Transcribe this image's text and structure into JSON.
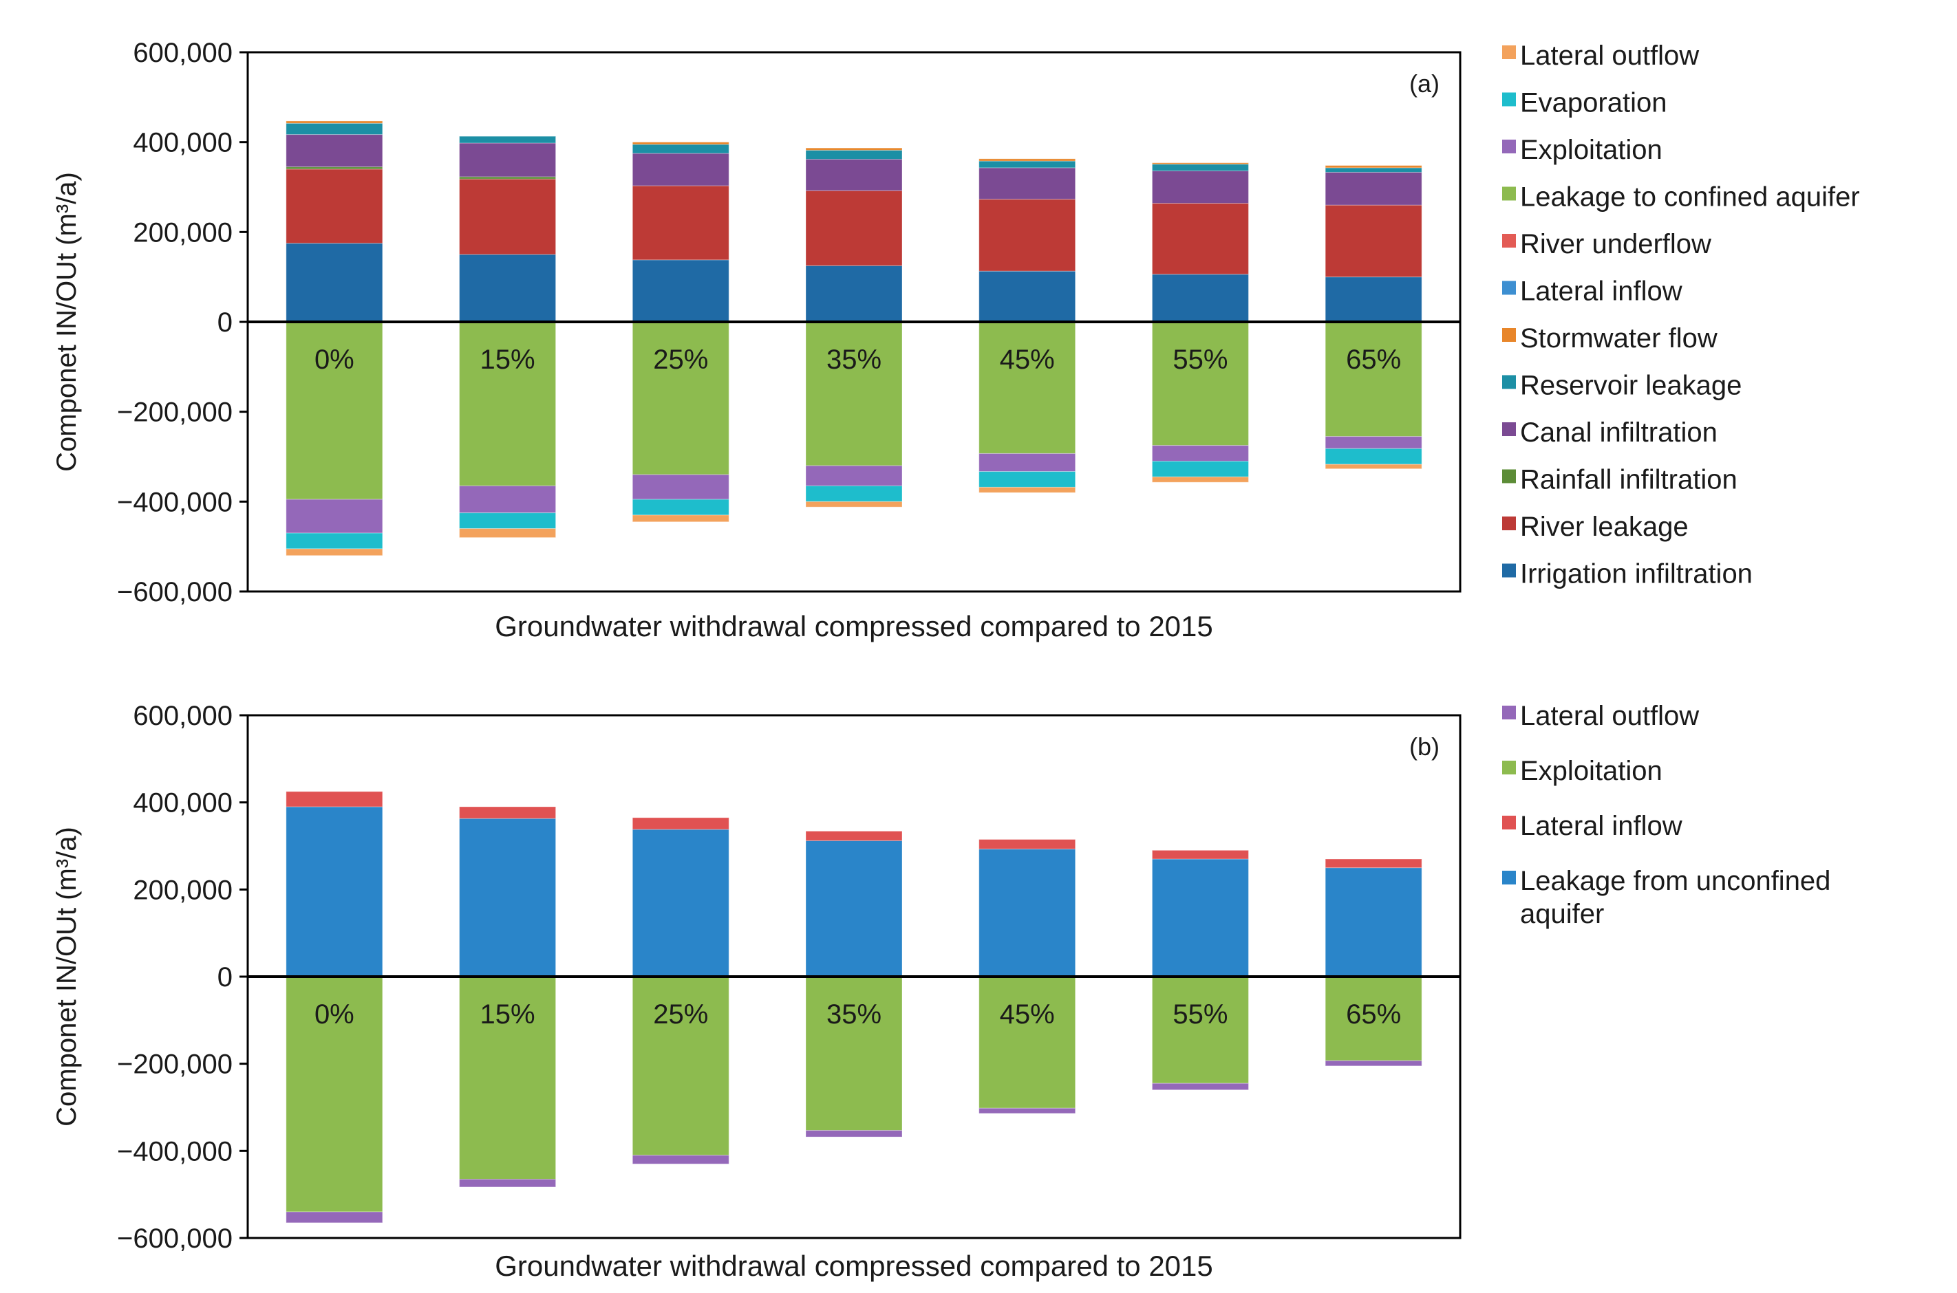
{
  "chart_data": [
    {
      "type": "bar",
      "stacked": true,
      "panel_label": "(a)",
      "xlabel": "Groundwater withdrawal compressed compared to 2015",
      "ylabel": "Componet IN/OUt (m³/a)",
      "ylim": [
        -600000,
        600000
      ],
      "yticks": [
        600000,
        400000,
        200000,
        0,
        -200000,
        -400000,
        -600000
      ],
      "ytick_labels": [
        "600,000",
        "400,000",
        "200,000",
        "0",
        "−200,000",
        "−400,000",
        "−600,000"
      ],
      "grid": false,
      "legend_position": "right",
      "categories": [
        "0%",
        "15%",
        "25%",
        "35%",
        "45%",
        "55%",
        "65%"
      ],
      "series": [
        {
          "name": "Irrigation infiltration",
          "color": "#1f6aa5",
          "values": [
            175000,
            150000,
            138000,
            125000,
            113000,
            106000,
            100000
          ]
        },
        {
          "name": "River leakage",
          "color": "#bd3a36",
          "values": [
            165000,
            168000,
            165000,
            167000,
            160000,
            158000,
            160000
          ]
        },
        {
          "name": "Rainfall infiltration",
          "color": "#5c8c37",
          "values": [
            5000,
            5000,
            0,
            0,
            0,
            0,
            0
          ]
        },
        {
          "name": "Canal infiltration",
          "color": "#7b4a93",
          "values": [
            72000,
            75000,
            72000,
            70000,
            70000,
            72000,
            73000
          ]
        },
        {
          "name": "Reservoir leakage",
          "color": "#1c8fa5",
          "values": [
            25000,
            15000,
            20000,
            20000,
            15000,
            15000,
            10000
          ]
        },
        {
          "name": "Stormwater flow",
          "color": "#e8862a",
          "values": [
            5000,
            0,
            5000,
            5000,
            5000,
            3000,
            5000
          ]
        },
        {
          "name": "Lateral inflow",
          "color": "#3d8fd1",
          "values": [
            0,
            0,
            0,
            0,
            0,
            0,
            0
          ]
        },
        {
          "name": "River underflow",
          "color": "#e35b55",
          "values": [
            0,
            0,
            0,
            0,
            0,
            0,
            0
          ]
        },
        {
          "name": "Leakage to confined aquifer",
          "color": "#8dbb4f",
          "values": [
            -395000,
            -365000,
            -340000,
            -320000,
            -293000,
            -275000,
            -255000
          ]
        },
        {
          "name": "Exploitation",
          "color": "#9468b9",
          "values": [
            -75000,
            -60000,
            -55000,
            -45000,
            -40000,
            -35000,
            -27000
          ]
        },
        {
          "name": "Evaporation",
          "color": "#1ebdcc",
          "values": [
            -35000,
            -35000,
            -35000,
            -35000,
            -35000,
            -35000,
            -35000
          ]
        },
        {
          "name": "Lateral outflow",
          "color": "#f3a25c",
          "values": [
            -15000,
            -20000,
            -15000,
            -12000,
            -12000,
            -12000,
            -10000
          ]
        }
      ],
      "legend_order": [
        "Lateral outflow",
        "Evaporation",
        "Exploitation",
        "Leakage to confined aquifer",
        "River underflow",
        "Lateral inflow",
        "Stormwater flow",
        "Reservoir leakage",
        "Canal infiltration",
        "Rainfall infiltration",
        "River leakage",
        "Irrigation infiltration"
      ]
    },
    {
      "type": "bar",
      "stacked": true,
      "panel_label": "(b)",
      "xlabel": "Groundwater withdrawal compressed compared to 2015",
      "ylabel": "Componet IN/OUt (m³/a)",
      "ylim": [
        -600000,
        600000
      ],
      "yticks": [
        600000,
        400000,
        200000,
        0,
        -200000,
        -400000,
        -600000
      ],
      "ytick_labels": [
        "600,000",
        "400,000",
        "200,000",
        "0",
        "−200,000",
        "−400,000",
        "−600,000"
      ],
      "grid": false,
      "legend_position": "right",
      "categories": [
        "0%",
        "15%",
        "25%",
        "35%",
        "45%",
        "55%",
        "65%"
      ],
      "series": [
        {
          "name": "Leakage from unconfined aquifer",
          "color": "#2a85c9",
          "values": [
            390000,
            363000,
            338000,
            312000,
            293000,
            270000,
            250000
          ]
        },
        {
          "name": "Lateral inflow",
          "color": "#e05252",
          "values": [
            35000,
            27000,
            27000,
            22000,
            22000,
            20000,
            20000
          ]
        },
        {
          "name": "Exploitation",
          "color": "#8dbb4f",
          "values": [
            -540000,
            -465000,
            -410000,
            -353000,
            -302000,
            -245000,
            -193000
          ]
        },
        {
          "name": "Lateral outflow",
          "color": "#9468b9",
          "values": [
            -25000,
            -18000,
            -20000,
            -15000,
            -12000,
            -15000,
            -12000
          ]
        }
      ],
      "legend_order": [
        "Lateral outflow",
        "Exploitation",
        "Lateral inflow",
        "Leakage from unconfined aquifer"
      ]
    }
  ]
}
